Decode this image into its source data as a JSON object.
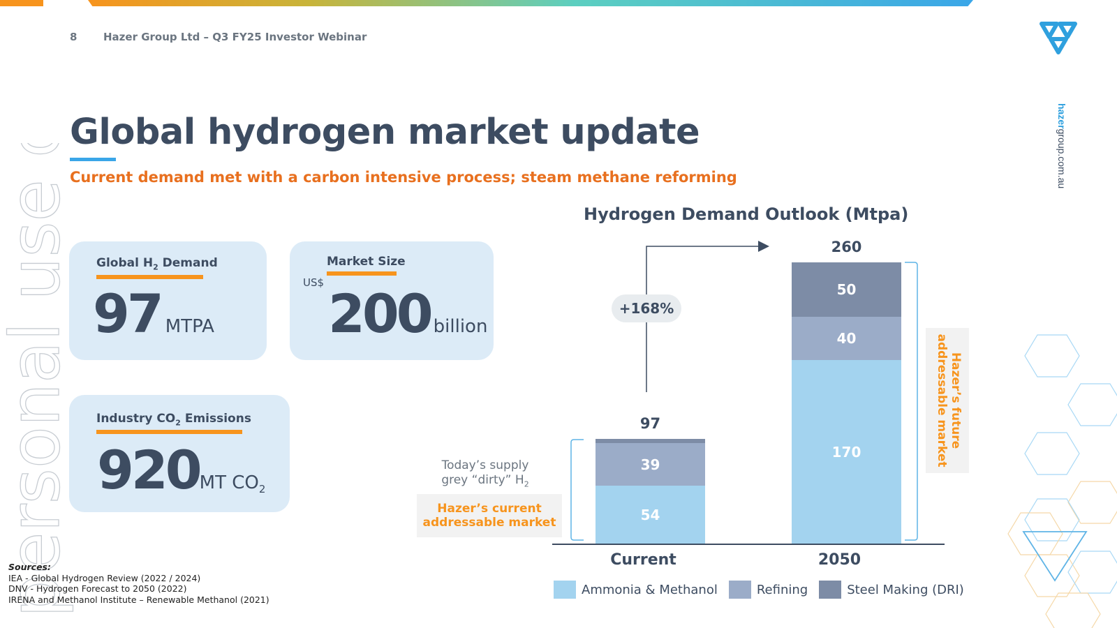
{
  "header": {
    "page_number": "8",
    "text": "Hazer Group Ltd – Q3 FY25 Investor Webinar",
    "website_prefix": "hazer",
    "website_suffix": "group.com.au",
    "watermark": "personal use only"
  },
  "title": "Global hydrogen market update",
  "subtitle": "Current demand met with a carbon intensive process; steam methane reforming",
  "cards": {
    "demand": {
      "label_pre": "Global H",
      "label_sub": "2",
      "label_post": " Demand",
      "value": "97",
      "unit": "MTPA"
    },
    "market": {
      "label": "Market Size",
      "prefix": "US$",
      "value": "200",
      "unit": "billion"
    },
    "emissions": {
      "label_pre": "Industry CO",
      "label_sub": "2",
      "label_post": " Emissions",
      "value": "920",
      "unit_pre": "MT CO",
      "unit_sub": "2"
    }
  },
  "chart_title": "Hydrogen Demand Outlook (Mtpa)",
  "chart_data": {
    "type": "bar",
    "stacked": true,
    "categories": [
      "Current",
      "2050"
    ],
    "series": [
      {
        "name": "Ammonia & Methanol",
        "values": [
          54,
          170
        ],
        "color": "#a3d3ef"
      },
      {
        "name": "Refining",
        "values": [
          39,
          40
        ],
        "color": "#9bacc8"
      },
      {
        "name": "Steel Making (DRI)",
        "values": [
          4,
          50
        ],
        "color": "#7d8ca6"
      }
    ],
    "totals": [
      97,
      260
    ],
    "segment_labels": [
      [
        "54",
        "39",
        ""
      ],
      [
        "170",
        "40",
        "50"
      ]
    ],
    "growth_label": "+168%",
    "ylim": [
      0,
      260
    ],
    "legend_position": "bottom"
  },
  "annotations": {
    "today_line1": "Today’s supply",
    "today_line2_pre": "grey “dirty” H",
    "today_line2_sub": "2",
    "current_market_line1": "Hazer’s current",
    "current_market_line2": "addressable market",
    "future_market_line1": "Hazer’s future",
    "future_market_line2": "addressable market"
  },
  "sources": {
    "heading": "Sources:",
    "items": [
      "IEA - Global Hydrogen Review (2022 / 2024)",
      "DNV - Hydrogen Forecast to 2050 (2022)",
      "IRENA and Methanol Institute – Renewable Methanol (2021)"
    ]
  }
}
